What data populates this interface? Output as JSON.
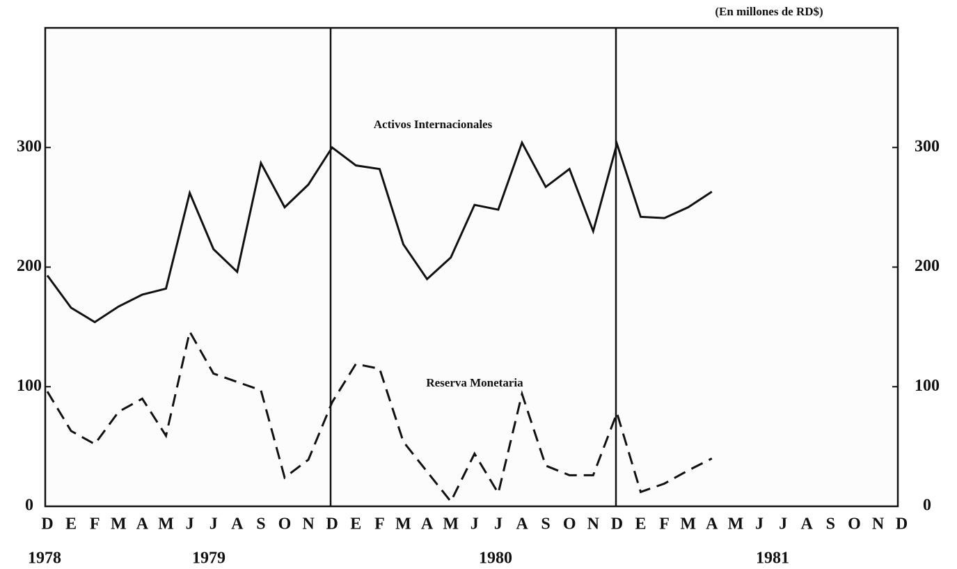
{
  "chart_data": {
    "type": "line",
    "unit_note": "(En millones de RD$)",
    "categories": [
      "D",
      "E",
      "F",
      "M",
      "A",
      "M",
      "J",
      "J",
      "A",
      "S",
      "O",
      "N",
      "D",
      "E",
      "F",
      "M",
      "A",
      "M",
      "J",
      "J",
      "A",
      "S",
      "O",
      "N",
      "D",
      "E",
      "F",
      "M",
      "A",
      "M",
      "J",
      "J",
      "A",
      "S",
      "O",
      "N",
      "D"
    ],
    "years": [
      "1978",
      "1979",
      "1980",
      "1981"
    ],
    "series": [
      {
        "name": "Activos Internacionales",
        "color": "#111",
        "dash": false,
        "values": [
          193,
          166,
          154,
          167,
          177,
          182,
          262,
          215,
          196,
          287,
          250,
          269,
          300,
          285,
          282,
          219,
          190,
          208,
          252,
          248,
          304,
          267,
          282,
          230,
          303,
          242,
          241,
          250,
          263,
          null,
          null,
          null,
          null,
          null,
          null,
          null,
          null
        ]
      },
      {
        "name": "Reserva Monetaria",
        "color": "#111",
        "dash": true,
        "values": [
          96,
          63,
          52,
          79,
          90,
          59,
          146,
          111,
          104,
          97,
          24,
          39,
          87,
          119,
          115,
          54,
          29,
          4,
          44,
          11,
          94,
          34,
          26,
          26,
          78,
          12,
          19,
          30,
          40,
          null,
          null,
          null,
          null,
          null,
          null,
          null,
          null
        ]
      }
    ],
    "ylim": [
      0,
      400
    ],
    "yticks": [
      0,
      100,
      200,
      300
    ],
    "grid": false
  }
}
